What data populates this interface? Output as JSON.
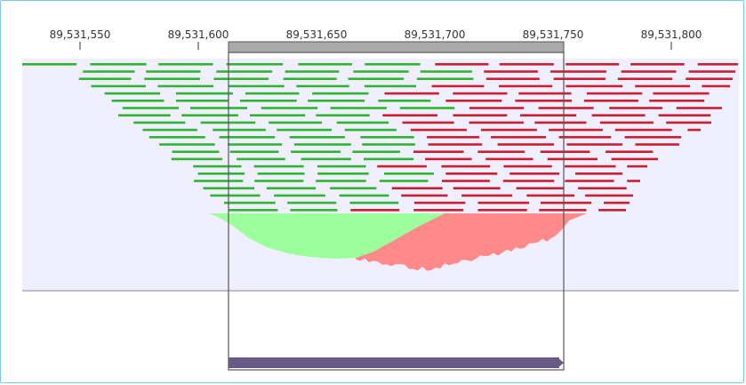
{
  "ruler": {
    "tick_labels": [
      "89,531,550",
      "89,531,600",
      "89,531,650",
      "89,531,700",
      "89,531,750",
      "89,531,800"
    ]
  },
  "colors": {
    "track_background": "#efefff",
    "forward_read": "#2fb52f",
    "reverse_read": "#cc2030",
    "forward_coverage": "#9cff9c",
    "reverse_coverage": "#ff8a8a",
    "selection_bar": "#aaaaaa",
    "feature_bar": "#675a86",
    "frame_border": "#7ec8de"
  },
  "icons": {
    "feature_end": "arrow-right-icon"
  }
}
